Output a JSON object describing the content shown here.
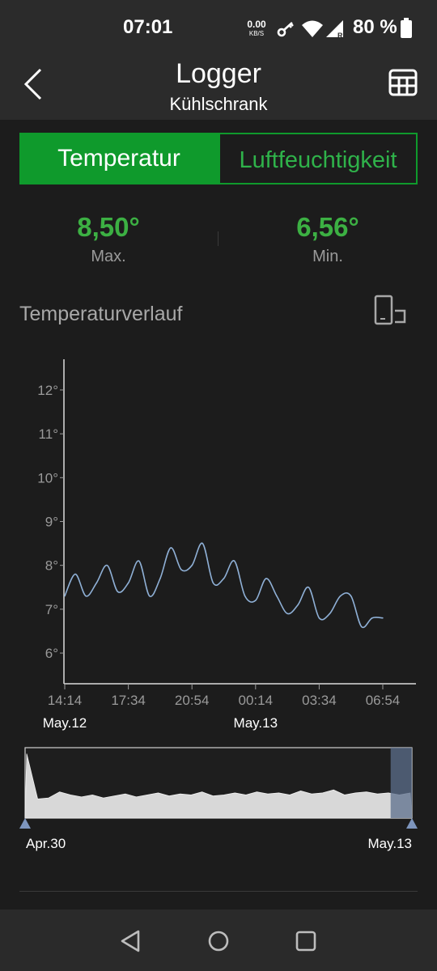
{
  "status": {
    "time": "07:01",
    "net_speed_value": "0.00",
    "net_speed_unit": "KB/S",
    "battery": "80 %"
  },
  "appbar": {
    "title": "Logger",
    "subtitle": "Kühlschrank"
  },
  "tabs": [
    "Temperatur",
    "Luftfeuchtigkeit"
  ],
  "active_tab": "Temperatur",
  "stats": {
    "max_value": "8,50°",
    "max_label": "Max.",
    "min_value": "6,56°",
    "min_label": "Min."
  },
  "section_title": "Temperaturverlauf",
  "colors": {
    "accent": "#0f9a2c",
    "value_green": "#3cb043",
    "line": "#8fb0d6",
    "navigator_fill": "#d8d8d8",
    "navigator_selection": "#5c6f8c"
  },
  "chart_data": {
    "type": "line",
    "y_tick_labels": [
      "12°",
      "11°",
      "10°",
      "9°",
      "8°",
      "7°",
      "6°"
    ],
    "y_ticks": [
      12,
      11,
      10,
      9,
      8,
      7,
      6
    ],
    "ylim": [
      5.3,
      12.7
    ],
    "x_tick_labels": [
      "14:14",
      "17:34",
      "20:54",
      "00:14",
      "03:34",
      "06:54"
    ],
    "date_labels": [
      "May.12",
      "May.13"
    ],
    "series": [
      {
        "x": [
          "2024-05-12 14:14",
          "2024-05-12 14:47",
          "2024-05-12 15:20",
          "2024-05-12 15:54",
          "2024-05-12 16:27",
          "2024-05-12 17:00",
          "2024-05-12 17:34",
          "2024-05-12 18:07",
          "2024-05-12 18:40",
          "2024-05-12 19:14",
          "2024-05-12 19:47",
          "2024-05-12 20:20",
          "2024-05-12 20:54",
          "2024-05-12 21:27",
          "2024-05-12 22:00",
          "2024-05-12 22:34",
          "2024-05-12 23:07",
          "2024-05-12 23:40",
          "2024-05-13 00:14",
          "2024-05-13 00:47",
          "2024-05-13 01:20",
          "2024-05-13 01:54",
          "2024-05-13 02:27",
          "2024-05-13 03:00",
          "2024-05-13 03:34",
          "2024-05-13 04:07",
          "2024-05-13 04:40",
          "2024-05-13 05:14",
          "2024-05-13 05:47",
          "2024-05-13 06:20",
          "2024-05-13 06:54"
        ],
        "y": [
          7.3,
          7.8,
          7.3,
          7.6,
          8.0,
          7.4,
          7.6,
          8.1,
          7.3,
          7.7,
          8.4,
          7.9,
          8.0,
          8.5,
          7.6,
          7.7,
          8.1,
          7.3,
          7.2,
          7.7,
          7.3,
          6.9,
          7.1,
          7.5,
          6.8,
          6.9,
          7.3,
          7.3,
          6.6,
          6.8,
          6.8
        ]
      }
    ],
    "navigator": {
      "start_label": "Apr.30",
      "end_label": "May.13",
      "y": [
        11.4,
        6.9,
        7.0,
        7.6,
        7.3,
        7.1,
        7.3,
        7.0,
        7.2,
        7.4,
        7.1,
        7.3,
        7.5,
        7.2,
        7.4,
        7.3,
        7.6,
        7.2,
        7.3,
        7.5,
        7.3,
        7.6,
        7.4,
        7.5,
        7.3,
        7.7,
        7.4,
        7.5,
        7.8,
        7.3,
        7.5,
        7.6,
        7.4,
        7.5,
        7.3,
        7.5
      ],
      "selection": [
        0.945,
        1.0
      ]
    }
  }
}
